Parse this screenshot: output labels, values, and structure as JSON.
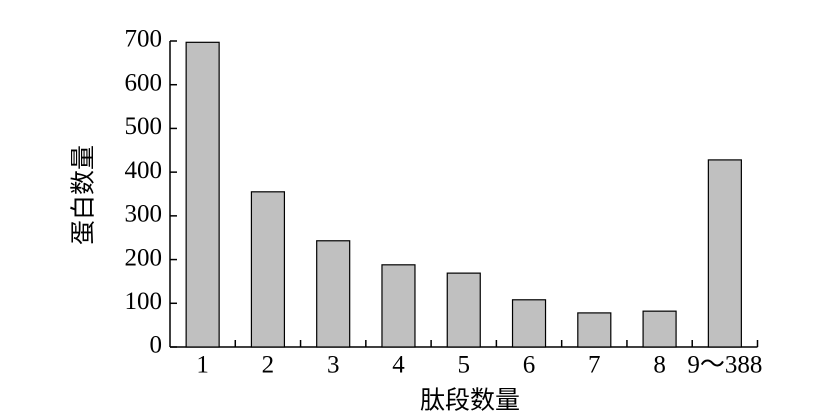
{
  "chart_data": {
    "type": "bar",
    "x_label": "肽段数量",
    "y_label": "蛋白数量",
    "categories": [
      "1",
      "2",
      "3",
      "4",
      "5",
      "6",
      "7",
      "8",
      "9～388"
    ],
    "values": [
      697,
      355,
      243,
      188,
      169,
      108,
      78,
      82,
      428
    ],
    "color": "#c0c0c0",
    "ylim": [
      0,
      700
    ],
    "yticks": [
      0,
      100,
      200,
      300,
      400,
      500,
      600,
      700
    ],
    "grid": false
  }
}
